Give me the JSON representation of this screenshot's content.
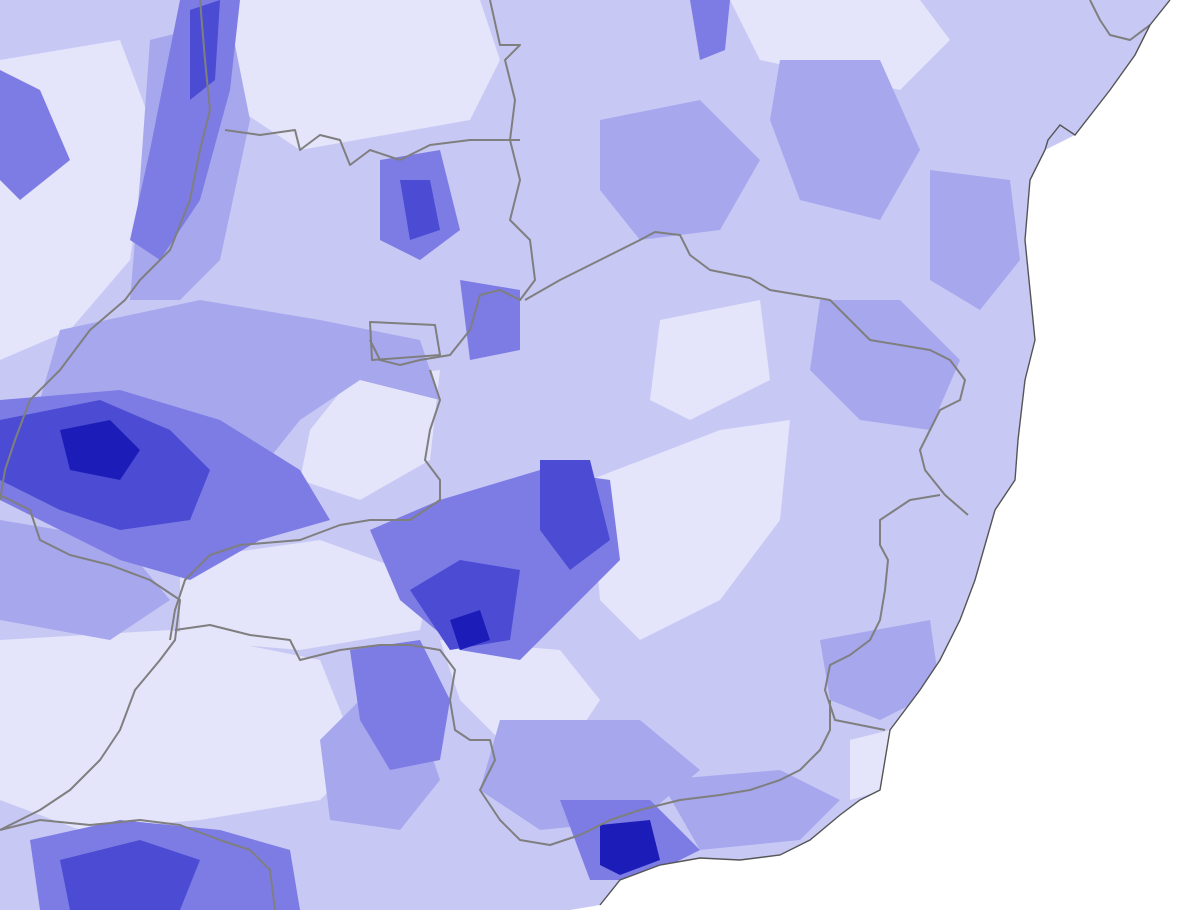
{
  "map": {
    "type": "raster-choropleth",
    "legend_shown": false,
    "colors": {
      "ocean": "#ffffff",
      "very_low": "#e4e4fb",
      "low": "#c8c8f5",
      "mid": "#a7a7ee",
      "high": "#7c7ce4",
      "very_high": "#4b4bd3",
      "extreme": "#1f1fb9",
      "boundary": "#7f7f7f",
      "coastline": "#555555"
    },
    "layers": [
      "ocean",
      "intensity-raster",
      "state-boundaries",
      "coastline"
    ]
  }
}
